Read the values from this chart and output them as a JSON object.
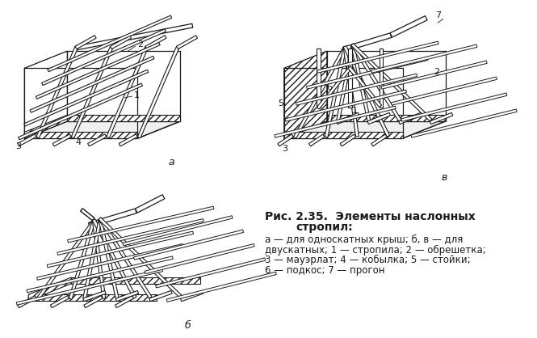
{
  "bg_color": "#ffffff",
  "line_color": "#1a1a1a",
  "hatch_color": "#1a1a1a",
  "fig_width": 6.65,
  "fig_height": 4.18,
  "dpi": 100,
  "title_line1": "Рис. 2.35.  Элементы наслонных",
  "title_line2": "стропил:",
  "caption_lines": [
    "а — для односкатных крыш; б, в — для",
    "двускатных; 1 — стропила; 2 — обрешетка;",
    "3 — мауэрлат; 4 — кобылка; 5 — стойки;",
    "6 — подкос; 7 — прогон"
  ],
  "label_a": "а",
  "label_b": "б",
  "label_v": "в"
}
